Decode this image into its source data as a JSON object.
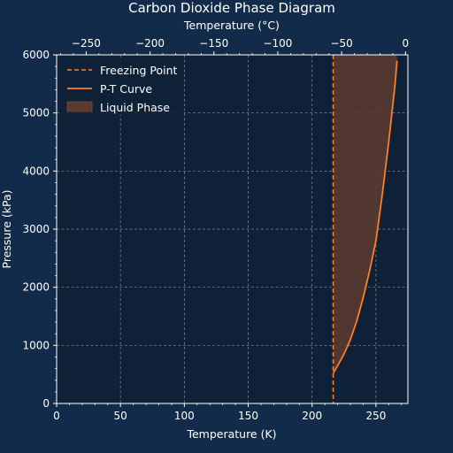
{
  "chart_data": {
    "type": "line",
    "title": "Carbon Dioxide Phase Diagram",
    "xlabel": "Temperature (K)",
    "ylabel": "Pressure (kPa)",
    "x2label": "Temperature (°C)",
    "xlim": [
      0,
      275
    ],
    "ylim": [
      0,
      6000
    ],
    "x2lim": [
      -273.15,
      1.85
    ],
    "xticks": [
      0,
      50,
      100,
      150,
      200,
      250
    ],
    "yticks": [
      0,
      1000,
      2000,
      3000,
      4000,
      5000,
      6000
    ],
    "x2ticks": [
      -250,
      -200,
      -150,
      -100,
      -50,
      0
    ],
    "x_tick_labels": [
      "0",
      "50",
      "100",
      "150",
      "200",
      "250"
    ],
    "y_tick_labels": [
      "0",
      "1000",
      "2000",
      "3000",
      "4000",
      "5000",
      "6000"
    ],
    "x2_tick_labels": [
      "−250",
      "−200",
      "−150",
      "−100",
      "−50",
      "0"
    ],
    "grid": true,
    "legend_position": "top-left",
    "series": [
      {
        "name": "Freezing Point",
        "kind": "vline",
        "x": 216.55,
        "color": "#ff7f2a",
        "style": "dashed"
      },
      {
        "name": "P-T Curve",
        "kind": "line",
        "color": "#ff7f2a",
        "x": [
          216.6,
          220,
          225,
          230,
          235,
          240,
          245,
          250,
          255,
          260,
          265,
          266.5
        ],
        "y": [
          520,
          650,
          850,
          1100,
          1420,
          1820,
          2280,
          2800,
          3600,
          4500,
          5500,
          5900
        ]
      },
      {
        "name": "Liquid Phase",
        "kind": "fill",
        "color": "#5a3a30",
        "between": [
          "Freezing Point",
          "P-T Curve"
        ]
      }
    ]
  }
}
